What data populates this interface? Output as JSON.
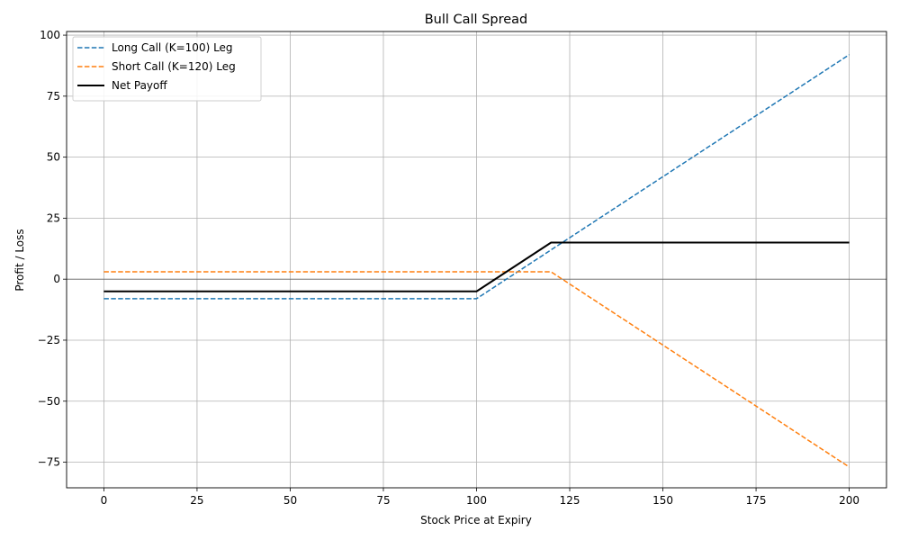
{
  "chart_data": {
    "type": "line",
    "title": "Bull Call Spread",
    "xlabel": "Stock Price at Expiry",
    "ylabel": "Profit / Loss",
    "xlim": [
      -10,
      210
    ],
    "ylim": [
      -85.5,
      101.5
    ],
    "xticks": [
      0,
      25,
      50,
      75,
      100,
      125,
      150,
      175,
      200
    ],
    "yticks": [
      -75,
      -50,
      -25,
      0,
      25,
      50,
      75,
      100
    ],
    "xtick_labels": [
      "0",
      "25",
      "50",
      "75",
      "100",
      "125",
      "150",
      "175",
      "200"
    ],
    "ytick_labels": [
      "−75",
      "−50",
      "−25",
      "0",
      "25",
      "50",
      "75",
      "100"
    ],
    "grid": true,
    "zero_line": true,
    "legend_position": "top-left",
    "series": [
      {
        "name": "Long Call (K=100) Leg",
        "color": "#1f77b4",
        "style": "dashed",
        "x": [
          0,
          100,
          200
        ],
        "y": [
          -8,
          -8,
          92
        ]
      },
      {
        "name": "Short Call (K=120) Leg",
        "color": "#ff7f0e",
        "style": "dashed",
        "x": [
          0,
          120,
          200
        ],
        "y": [
          3,
          3,
          -77
        ]
      },
      {
        "name": "Net Payoff",
        "color": "#000000",
        "style": "solid",
        "x": [
          0,
          100,
          120,
          200
        ],
        "y": [
          -5,
          -5,
          15,
          15
        ]
      }
    ]
  }
}
